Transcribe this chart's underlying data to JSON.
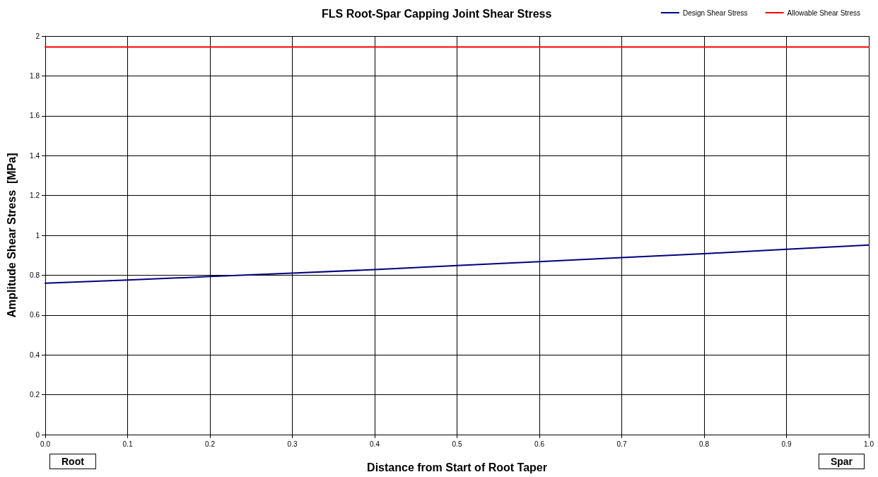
{
  "chart_data": {
    "type": "line",
    "title": "FLS Root-Spar Capping Joint Shear Stress",
    "xlabel": "Distance from Start of Root Taper",
    "ylabel": "Amplitude Shear Stress  [MPa]",
    "x": [
      0,
      0.1,
      0.2,
      0.3,
      0.4,
      0.5,
      0.6,
      0.7,
      0.8,
      0.9,
      1.0
    ],
    "series": [
      {
        "name": "Design Shear Stress",
        "color": "#000080",
        "values": [
          0.76,
          0.776,
          0.793,
          0.81,
          0.828,
          0.848,
          0.868,
          0.888,
          0.908,
          0.93,
          0.951
        ]
      },
      {
        "name": "Allowable Shear Stress",
        "color": "#ff0000",
        "values": [
          1.945,
          1.945,
          1.945,
          1.945,
          1.945,
          1.945,
          1.945,
          1.945,
          1.945,
          1.945,
          1.945
        ]
      }
    ],
    "xlim": [
      0,
      1
    ],
    "xticks": [
      {
        "value": 0,
        "label": "0.0"
      },
      0.1,
      0.2,
      0.3,
      0.4,
      0.5,
      0.6,
      0.7,
      0.8,
      0.9,
      {
        "value": 1,
        "label": "1.0"
      }
    ],
    "ylim": [
      0,
      2
    ],
    "yticks": [
      0,
      0.2,
      0.4,
      0.6,
      0.8,
      1,
      1.2,
      1.4,
      1.6,
      1.8,
      2
    ],
    "annotations": [
      "Root",
      "Spar"
    ],
    "grid": true,
    "legend": "top right",
    "marker": "none",
    "line_style": "solid"
  }
}
